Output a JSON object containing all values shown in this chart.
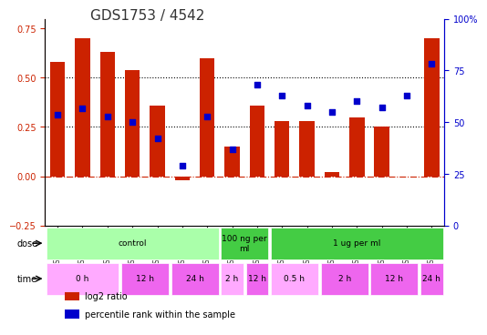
{
  "title": "GDS1753 / 4542",
  "samples": [
    "GSM93635",
    "GSM93638",
    "GSM93649",
    "GSM93641",
    "GSM93644",
    "GSM93645",
    "GSM93650",
    "GSM93646",
    "GSM93648",
    "GSM93642",
    "GSM93643",
    "GSM93639",
    "GSM93647",
    "GSM93637",
    "GSM93640",
    "GSM93636"
  ],
  "log2_ratio": [
    0.58,
    0.7,
    0.63,
    0.54,
    0.36,
    -0.02,
    0.6,
    0.15,
    0.36,
    0.28,
    0.28,
    0.02,
    0.3,
    0.25,
    0.0,
    0.7
  ],
  "percentile": [
    0.535,
    0.565,
    0.525,
    0.5,
    0.42,
    0.29,
    0.525,
    0.37,
    0.68,
    0.63,
    0.58,
    0.55,
    0.6,
    0.57,
    0.63,
    0.78
  ],
  "bar_color": "#cc2200",
  "dot_color": "#0000cc",
  "left_ylim": [
    -0.25,
    0.8
  ],
  "right_ylim": [
    0,
    100
  ],
  "left_yticks": [
    -0.25,
    0.0,
    0.25,
    0.5,
    0.75
  ],
  "right_yticks": [
    0,
    25,
    50,
    75,
    100
  ],
  "right_yticklabels": [
    "0",
    "25",
    "50",
    "75",
    "100%"
  ],
  "hline_values": [
    0.25,
    0.5
  ],
  "zero_line": 0.0,
  "dose_groups": [
    {
      "label": "control",
      "start": 0,
      "end": 7,
      "color": "#aaffaa"
    },
    {
      "label": "100 ng per\nml",
      "start": 7,
      "end": 9,
      "color": "#44cc44"
    },
    {
      "label": "1 ug per ml",
      "start": 9,
      "end": 16,
      "color": "#44cc44"
    }
  ],
  "time_groups": [
    {
      "label": "0 h",
      "start": 0,
      "end": 3,
      "color": "#ffaaff"
    },
    {
      "label": "12 h",
      "start": 3,
      "end": 5,
      "color": "#ee66ee"
    },
    {
      "label": "24 h",
      "start": 5,
      "end": 7,
      "color": "#ee66ee"
    },
    {
      "label": "2 h",
      "start": 7,
      "end": 8,
      "color": "#ffaaff"
    },
    {
      "label": "12 h",
      "start": 8,
      "end": 9,
      "color": "#ee66ee"
    },
    {
      "label": "0.5 h",
      "start": 9,
      "end": 11,
      "color": "#ffaaff"
    },
    {
      "label": "2 h",
      "start": 11,
      "end": 13,
      "color": "#ee66ee"
    },
    {
      "label": "12 h",
      "start": 13,
      "end": 15,
      "color": "#ee66ee"
    },
    {
      "label": "24 h",
      "start": 15,
      "end": 16,
      "color": "#ee66ee"
    }
  ],
  "legend_items": [
    {
      "label": "log2 ratio",
      "color": "#cc2200",
      "marker": "s"
    },
    {
      "label": "percentile rank within the sample",
      "color": "#0000cc",
      "marker": "s"
    }
  ]
}
